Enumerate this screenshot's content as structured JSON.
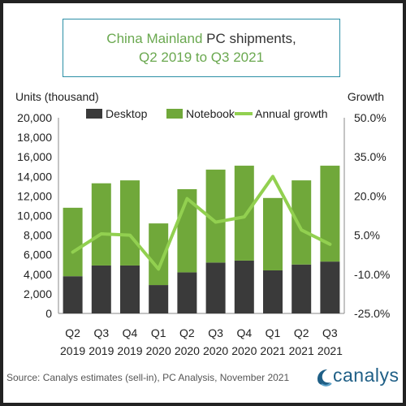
{
  "title": {
    "part1": "China Mainland",
    "part2": " PC shipments,",
    "line2": "Q2 2019 to Q3 2021"
  },
  "colors": {
    "desktop": "#3a3a3a",
    "notebook": "#70a83a",
    "growth": "#92d050",
    "title_accent": "#6aa84f",
    "brand": "#1f5f86"
  },
  "source": "Source: Canalys estimates (sell-in), PC Analysis, November 2021",
  "brand": {
    "name": "canalys",
    "icon": "canalys-logo-icon"
  },
  "chart_data": {
    "type": "bar",
    "stacked": true,
    "categories": [
      [
        "Q2",
        "2019"
      ],
      [
        "Q3",
        "2019"
      ],
      [
        "Q4",
        "2019"
      ],
      [
        "Q1",
        "2020"
      ],
      [
        "Q2",
        "2020"
      ],
      [
        "Q3",
        "2020"
      ],
      [
        "Q4",
        "2020"
      ],
      [
        "Q1",
        "2021"
      ],
      [
        "Q2",
        "2021"
      ],
      [
        "Q3",
        "2021"
      ]
    ],
    "series": [
      {
        "name": "Desktop",
        "type": "bar",
        "values": [
          3800,
          4900,
          4900,
          2900,
          4200,
          5200,
          5400,
          4400,
          5000,
          5300
        ]
      },
      {
        "name": "Notebook",
        "type": "bar",
        "values": [
          7000,
          8400,
          8700,
          6300,
          8500,
          9500,
          9700,
          7400,
          8600,
          9800
        ]
      },
      {
        "name": "Annual growth",
        "type": "line",
        "axis": "right",
        "values": [
          -1.5,
          5.5,
          5.0,
          -8.0,
          19.0,
          10.0,
          12.0,
          27.5,
          7.0,
          1.5
        ]
      }
    ],
    "ylabel": "Units (thousand)",
    "y2label": "Growth",
    "ylim": [
      0,
      20000
    ],
    "yticks": [
      "0",
      "2,000",
      "4,000",
      "6,000",
      "8,000",
      "10,000",
      "12,000",
      "14,000",
      "16,000",
      "18,000",
      "20,000"
    ],
    "y2lim": [
      -25,
      50
    ],
    "y2ticks": [
      "-25.0%",
      "-10.0%",
      "5.0%",
      "20.0%",
      "35.0%",
      "50.0%"
    ],
    "legend_position": "top",
    "grid": false
  }
}
